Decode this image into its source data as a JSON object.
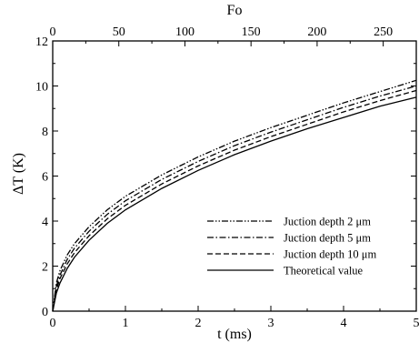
{
  "chart_data": {
    "type": "line",
    "title": "",
    "xlabel": "t (ms)",
    "ylabel": "ΔT (K)",
    "x2label": "Fo",
    "xlim": [
      0,
      5
    ],
    "ylim": [
      0,
      12
    ],
    "x2lim": [
      0,
      275
    ],
    "xticks": [
      0,
      1,
      2,
      3,
      4,
      5
    ],
    "yticks": [
      0,
      2,
      4,
      6,
      8,
      10,
      12
    ],
    "x2ticks": [
      0,
      50,
      100,
      150,
      200,
      250
    ],
    "grid": false,
    "legend_position": "bottom-right",
    "series": [
      {
        "name": "Juction depth 2 μm",
        "style": "dash-dot-dot",
        "color": "#000000",
        "x": [
          0.0,
          0.05,
          0.1,
          0.2,
          0.3,
          0.5,
          0.75,
          1.0,
          1.5,
          2.0,
          2.5,
          3.0,
          3.5,
          4.0,
          4.5,
          5.0
        ],
        "y": [
          0.0,
          1.25,
          1.8,
          2.5,
          3.0,
          3.75,
          4.5,
          5.1,
          6.05,
          6.85,
          7.55,
          8.15,
          8.7,
          9.25,
          9.75,
          10.25
        ]
      },
      {
        "name": "Juction depth 5 μm",
        "style": "dash-dot",
        "color": "#000000",
        "x": [
          0.0,
          0.05,
          0.1,
          0.2,
          0.3,
          0.5,
          0.75,
          1.0,
          1.5,
          2.0,
          2.5,
          3.0,
          3.5,
          4.0,
          4.5,
          5.0
        ],
        "y": [
          0.0,
          1.1,
          1.6,
          2.3,
          2.8,
          3.55,
          4.3,
          4.9,
          5.85,
          6.65,
          7.35,
          7.95,
          8.5,
          9.05,
          9.55,
          10.0
        ]
      },
      {
        "name": "Juction depth 10 μm",
        "style": "dashed",
        "color": "#000000",
        "x": [
          0.0,
          0.05,
          0.1,
          0.2,
          0.3,
          0.5,
          0.75,
          1.0,
          1.5,
          2.0,
          2.5,
          3.0,
          3.5,
          4.0,
          4.5,
          5.0
        ],
        "y": [
          0.0,
          0.95,
          1.45,
          2.1,
          2.6,
          3.35,
          4.1,
          4.7,
          5.65,
          6.45,
          7.15,
          7.75,
          8.3,
          8.85,
          9.35,
          9.8
        ]
      },
      {
        "name": "Theoretical value",
        "style": "solid",
        "color": "#000000",
        "x": [
          0.0,
          0.05,
          0.1,
          0.2,
          0.3,
          0.5,
          0.75,
          1.0,
          1.5,
          2.0,
          2.5,
          3.0,
          3.5,
          4.0,
          4.5,
          5.0
        ],
        "y": [
          0.0,
          0.8,
          1.25,
          1.9,
          2.4,
          3.15,
          3.9,
          4.5,
          5.45,
          6.25,
          6.95,
          7.55,
          8.1,
          8.6,
          9.1,
          9.5
        ]
      }
    ]
  }
}
